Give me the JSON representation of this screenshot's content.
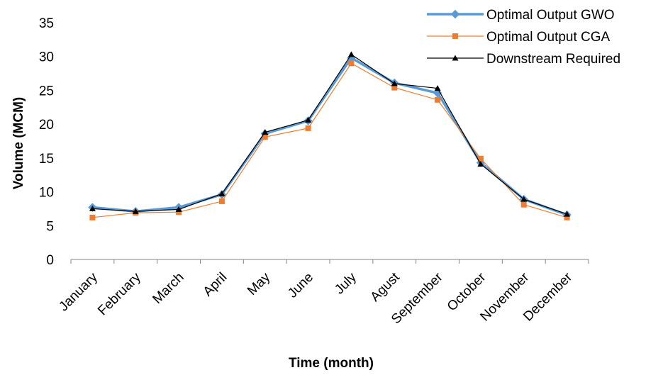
{
  "chart_data": {
    "type": "line",
    "title": "",
    "xlabel": "Time (month)",
    "ylabel": "Volume (MCM)",
    "ylim": [
      0,
      35
    ],
    "yticks": [
      "0",
      "5",
      "10",
      "15",
      "20",
      "25",
      "30",
      "35"
    ],
    "categories": [
      "January",
      "February",
      "March",
      "April",
      "May",
      "June",
      "July",
      "Agust",
      "September",
      "October",
      "November",
      "December"
    ],
    "grid": false,
    "legend_position": "top-right",
    "series": [
      {
        "name": "Optimal Output GWO",
        "color": "#5b9bd5",
        "marker": "diamond",
        "values": [
          7.7,
          7.1,
          7.7,
          9.6,
          18.6,
          20.5,
          29.8,
          26.1,
          24.6,
          14.3,
          8.9,
          6.6
        ]
      },
      {
        "name": "Optimal Output CGA",
        "color": "#ed7d31",
        "marker": "square",
        "values": [
          6.2,
          6.9,
          7.0,
          8.6,
          18.1,
          19.4,
          29.0,
          25.4,
          23.6,
          14.9,
          8.1,
          6.2
        ]
      },
      {
        "name": "Downstream Required",
        "color": "#000000",
        "marker": "triangle",
        "values": [
          7.5,
          7.1,
          7.4,
          9.7,
          18.8,
          20.6,
          30.3,
          26.0,
          25.3,
          14.1,
          8.9,
          6.7
        ]
      }
    ]
  }
}
